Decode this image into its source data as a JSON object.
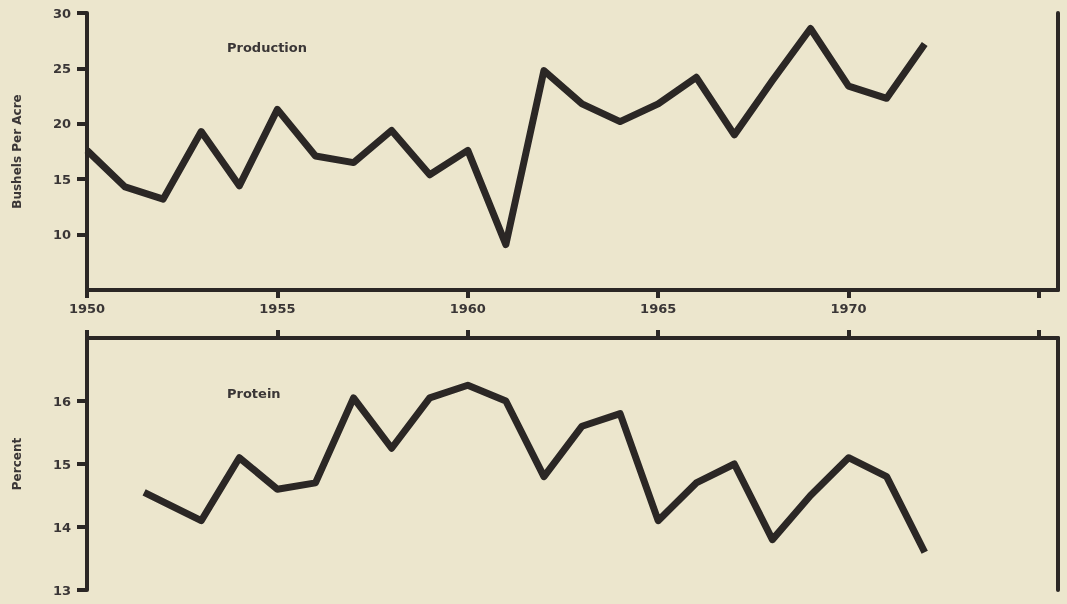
{
  "chart_data": [
    {
      "type": "line",
      "title": "Production",
      "ylabel": "Bushels Per Acre",
      "marker": "none",
      "x": [
        1950,
        1951,
        1952,
        1953,
        1954,
        1955,
        1956,
        1957,
        1958,
        1959,
        1960,
        1961,
        1962,
        1963,
        1964,
        1965,
        1966,
        1967,
        1968,
        1969,
        1970,
        1971,
        1972
      ],
      "series": [
        {
          "color": "#2b2725",
          "values": [
            17.6,
            14.3,
            13.2,
            19.3,
            14.4,
            21.3,
            17.1,
            16.5,
            19.4,
            15.4,
            17.6,
            9.1,
            24.8,
            21.8,
            20.2,
            21.8,
            24.2,
            19.0,
            23.9,
            28.6,
            23.4,
            22.3,
            27.2
          ]
        }
      ],
      "xlim": [
        1950,
        1975.5
      ],
      "xticks": [
        1950,
        1955,
        1960,
        1965,
        1970,
        {
          "value": 1975,
          "label": null
        }
      ],
      "ylim": [
        5,
        30
      ],
      "yticks": [
        10,
        15,
        20,
        25,
        30
      ]
    },
    {
      "type": "line",
      "title": "Protein",
      "ylabel": "Percent",
      "marker": "none",
      "tick_labels": "y",
      "x": [
        1951.5,
        1953,
        1954,
        1955,
        1956,
        1957,
        1958,
        1959,
        1960,
        1961,
        1962,
        1963,
        1964,
        1965,
        1966,
        1967,
        1968,
        1969,
        1970,
        1971,
        1972
      ],
      "series": [
        {
          "color": "#2b2725",
          "values": [
            14.55,
            14.1,
            15.1,
            14.6,
            14.7,
            16.05,
            15.25,
            16.05,
            16.25,
            16.0,
            14.8,
            15.6,
            15.8,
            14.1,
            14.7,
            15.0,
            13.8,
            14.5,
            15.1,
            14.8,
            13.6
          ]
        }
      ],
      "xlim": [
        1950,
        1975.5
      ],
      "xticks": [
        1950,
        1955,
        1960,
        1965,
        1970,
        {
          "value": 1975,
          "label": null
        }
      ],
      "ylim": [
        13,
        17
      ],
      "yticks": [
        13,
        14,
        15,
        16
      ]
    }
  ]
}
